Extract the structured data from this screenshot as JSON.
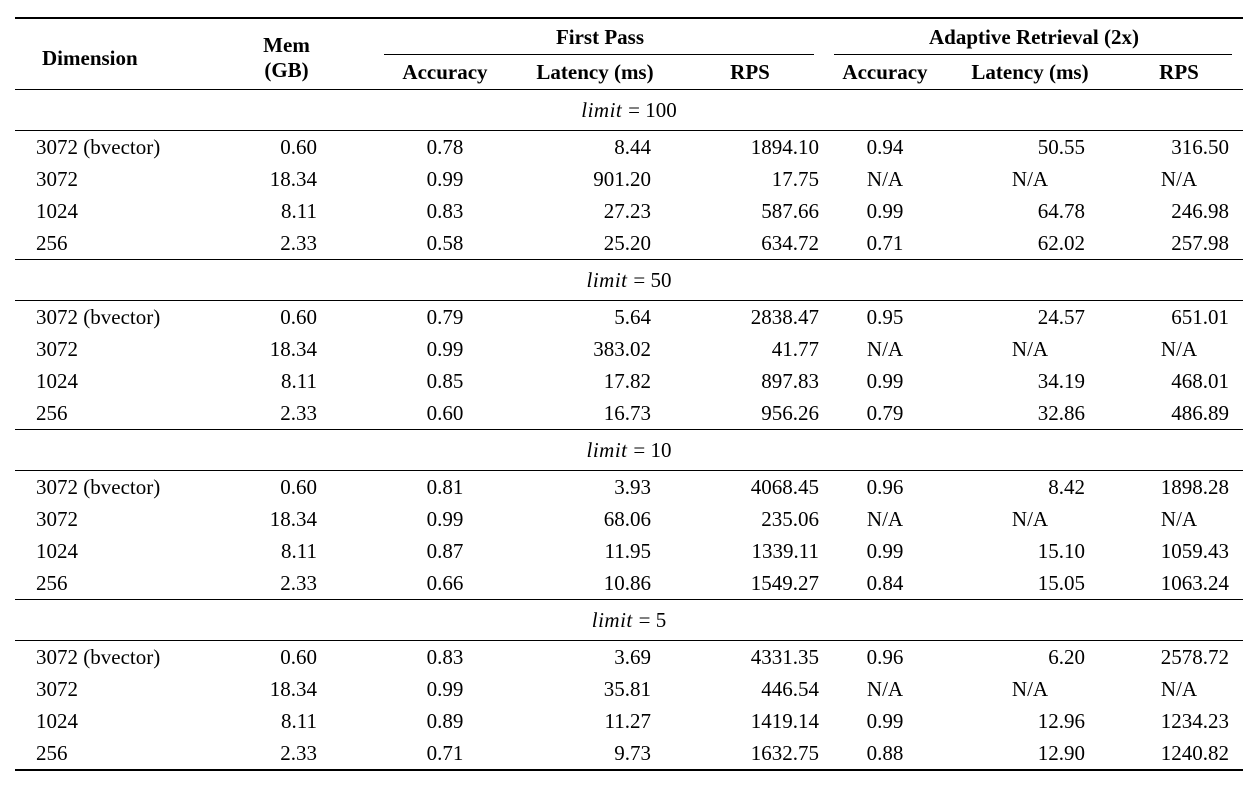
{
  "header": {
    "dimension": "Dimension",
    "mem": "Mem (GB)",
    "first_pass_group": "First Pass",
    "adaptive_group": "Adaptive Retrieval (2x)",
    "fp_accuracy": "Accuracy",
    "fp_latency": "Latency (ms)",
    "fp_rps": "RPS",
    "ar_accuracy": "Accuracy",
    "ar_latency": "Latency (ms)",
    "ar_rps": "RPS"
  },
  "na_text": "N/A",
  "sections": [
    {
      "limit_var": "limit",
      "limit_rest": "= 100",
      "rows": [
        [
          "3072 (bvector)",
          "0.60",
          "0.78",
          "8.44",
          "1894.10",
          "0.94",
          "50.55",
          "316.50"
        ],
        [
          "3072",
          "18.34",
          "0.99",
          "901.20",
          "17.75",
          "N/A",
          "N/A",
          "N/A"
        ],
        [
          "1024",
          "8.11",
          "0.83",
          "27.23",
          "587.66",
          "0.99",
          "64.78",
          "246.98"
        ],
        [
          "256",
          "2.33",
          "0.58",
          "25.20",
          "634.72",
          "0.71",
          "62.02",
          "257.98"
        ]
      ]
    },
    {
      "limit_var": "limit",
      "limit_rest": "= 50",
      "rows": [
        [
          "3072 (bvector)",
          "0.60",
          "0.79",
          "5.64",
          "2838.47",
          "0.95",
          "24.57",
          "651.01"
        ],
        [
          "3072",
          "18.34",
          "0.99",
          "383.02",
          "41.77",
          "N/A",
          "N/A",
          "N/A"
        ],
        [
          "1024",
          "8.11",
          "0.85",
          "17.82",
          "897.83",
          "0.99",
          "34.19",
          "468.01"
        ],
        [
          "256",
          "2.33",
          "0.60",
          "16.73",
          "956.26",
          "0.79",
          "32.86",
          "486.89"
        ]
      ]
    },
    {
      "limit_var": "limit",
      "limit_rest": "= 10",
      "rows": [
        [
          "3072 (bvector)",
          "0.60",
          "0.81",
          "3.93",
          "4068.45",
          "0.96",
          "8.42",
          "1898.28"
        ],
        [
          "3072",
          "18.34",
          "0.99",
          "68.06",
          "235.06",
          "N/A",
          "N/A",
          "N/A"
        ],
        [
          "1024",
          "8.11",
          "0.87",
          "11.95",
          "1339.11",
          "0.99",
          "15.10",
          "1059.43"
        ],
        [
          "256",
          "2.33",
          "0.66",
          "10.86",
          "1549.27",
          "0.84",
          "15.05",
          "1063.24"
        ]
      ]
    },
    {
      "limit_var": "limit",
      "limit_rest": "= 5",
      "rows": [
        [
          "3072 (bvector)",
          "0.60",
          "0.83",
          "3.69",
          "4331.35",
          "0.96",
          "6.20",
          "2578.72"
        ],
        [
          "3072",
          "18.34",
          "0.99",
          "35.81",
          "446.54",
          "N/A",
          "N/A",
          "N/A"
        ],
        [
          "1024",
          "8.11",
          "0.89",
          "11.27",
          "1419.14",
          "0.99",
          "12.96",
          "1234.23"
        ],
        [
          "256",
          "2.33",
          "0.71",
          "9.73",
          "1632.75",
          "0.88",
          "12.90",
          "1240.82"
        ]
      ]
    }
  ]
}
